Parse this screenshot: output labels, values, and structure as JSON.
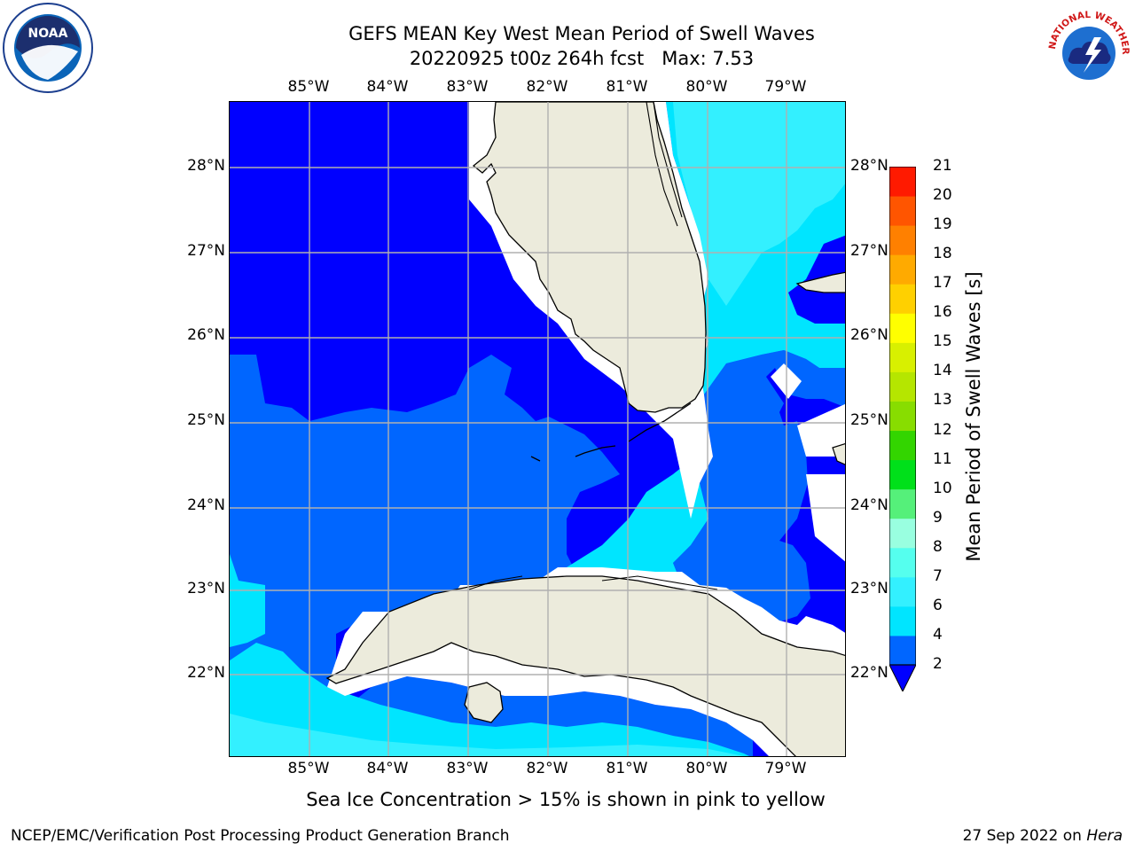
{
  "title": {
    "line1": "GEFS MEAN Key West Mean Period of Swell Waves",
    "line2": "20220925 t00z 264h fcst   Max: 7.53"
  },
  "map": {
    "x_ticks": [
      "85°W",
      "84°W",
      "83°W",
      "82°W",
      "81°W",
      "80°W",
      "79°W"
    ],
    "y_ticks": [
      "28°N",
      "27°N",
      "26°N",
      "25°N",
      "24°N",
      "23°N",
      "22°N"
    ],
    "colors": {
      "land": "#ecebdc",
      "coast": "#000000",
      "grid": "#b0b0b0",
      "nodata": "#ffffff"
    }
  },
  "colorbar": {
    "label": "Mean Period of Swell Waves [s]",
    "ticks": [
      "2",
      "4",
      "6",
      "7",
      "8",
      "9",
      "10",
      "11",
      "12",
      "13",
      "14",
      "15",
      "16",
      "17",
      "18",
      "19",
      "20",
      "21"
    ],
    "levels": [
      {
        "from": 2,
        "to": 4,
        "color": "#0066ff"
      },
      {
        "from": 4,
        "to": 6,
        "color": "#00e5ff"
      },
      {
        "from": 6,
        "to": 7,
        "color": "#33f0ff"
      },
      {
        "from": 7,
        "to": 8,
        "color": "#55ffee"
      },
      {
        "from": 8,
        "to": 9,
        "color": "#99ffe0"
      },
      {
        "from": 9,
        "to": 10,
        "color": "#55f07a"
      },
      {
        "from": 10,
        "to": 11,
        "color": "#00e01a"
      },
      {
        "from": 11,
        "to": 12,
        "color": "#33d500"
      },
      {
        "from": 12,
        "to": 13,
        "color": "#88dd00"
      },
      {
        "from": 13,
        "to": 14,
        "color": "#b5e600"
      },
      {
        "from": 14,
        "to": 15,
        "color": "#d8f000"
      },
      {
        "from": 15,
        "to": 16,
        "color": "#ffff00"
      },
      {
        "from": 16,
        "to": 17,
        "color": "#ffd000"
      },
      {
        "from": 17,
        "to": 18,
        "color": "#ffaa00"
      },
      {
        "from": 18,
        "to": 19,
        "color": "#ff8000"
      },
      {
        "from": 19,
        "to": 20,
        "color": "#ff5500"
      },
      {
        "from": 20,
        "to": 21,
        "color": "#ff1a00"
      }
    ],
    "under_color": "#0000ff"
  },
  "ice_note": "Sea Ice Concentration > 15% is shown in pink to yellow",
  "footer": {
    "left": "NCEP/EMC/Verification Post Processing Product Generation Branch",
    "right_date": "27 Sep 2022 on ",
    "right_host": "Hera"
  },
  "logos": {
    "noaa_text": "NOAA",
    "nws_text": "NATIONAL WEATHER SERVICE"
  }
}
